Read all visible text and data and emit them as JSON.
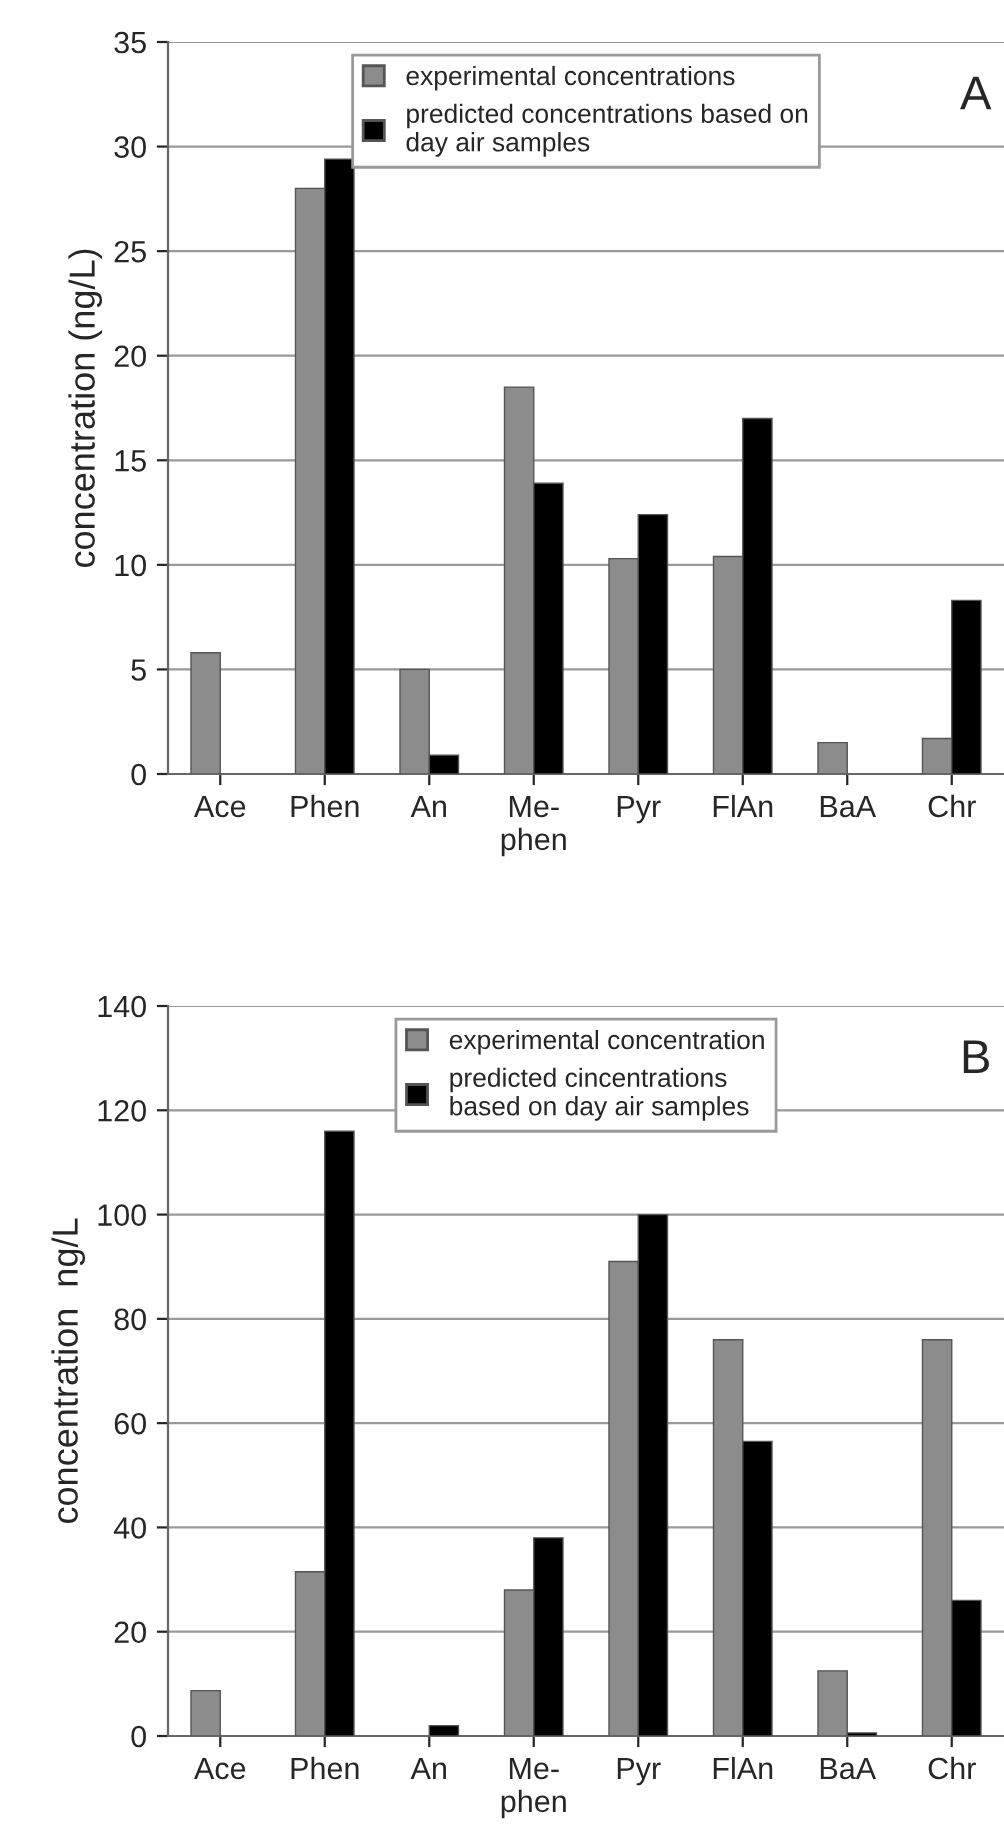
{
  "chart_data": [
    {
      "type": "bar",
      "ylabel": "concentration (ng/L)",
      "categories": [
        "Ace",
        "Phen",
        "An",
        "Me-\nphen",
        "Pyr",
        "FlAn",
        "BaA",
        "Chr"
      ],
      "series": [
        {
          "name": "experimental concentrations",
          "color": "#8c8c8c",
          "values": [
            5.8,
            28,
            5,
            18.5,
            10.3,
            10.4,
            1.5,
            1.7
          ]
        },
        {
          "name": "predicted concentrations based on\nday air samples",
          "color": "#000000",
          "values": [
            null,
            29.4,
            0.9,
            13.9,
            12.4,
            17,
            null,
            8.3
          ]
        }
      ],
      "ylim": [
        0,
        35
      ],
      "yticks": [
        0,
        5,
        10,
        15,
        20,
        25,
        30,
        35
      ],
      "grid": "y",
      "legend": "top",
      "annotations": [
        "A"
      ]
    },
    {
      "type": "bar",
      "ylabel": "concentration  ng/L",
      "categories": [
        "Ace",
        "Phen",
        "An",
        "Me-\nphen",
        "Pyr",
        "FlAn",
        "BaA",
        "Chr"
      ],
      "series": [
        {
          "name": "experimental concentration",
          "color": "#8c8c8c",
          "values": [
            8.7,
            31.5,
            null,
            28,
            91,
            76,
            12.5,
            76
          ]
        },
        {
          "name": "predicted cincentrations\nbased on day air samples",
          "color": "#000000",
          "values": [
            null,
            116,
            2,
            38,
            100,
            56.5,
            0.6,
            26
          ]
        }
      ],
      "ylim": [
        0,
        140
      ],
      "yticks": [
        0,
        20,
        40,
        60,
        80,
        100,
        120,
        140
      ],
      "grid": "y",
      "legend": "top",
      "annotations": [
        "B"
      ]
    }
  ]
}
